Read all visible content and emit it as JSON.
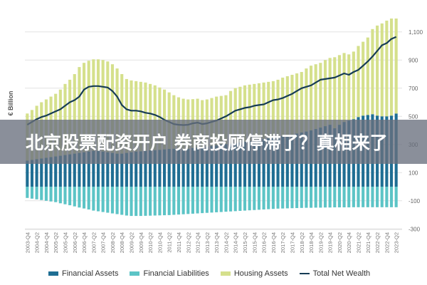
{
  "banner": {
    "title": "北京股票配资开户 券商投顾停滞了？真相来了"
  },
  "chart_data": {
    "type": "bar",
    "stacked": true,
    "ylabel": "€ Billion",
    "ylim": [
      -300,
      1200
    ],
    "y_ticks": [
      1100,
      900,
      700,
      500,
      300,
      100,
      -100,
      -300
    ],
    "y_tick_labels": [
      "1,100",
      "900",
      "700",
      "500",
      "300",
      "100",
      "-100",
      "-300"
    ],
    "y_axis_position": "right",
    "grid": true,
    "legend_position": "bottom",
    "x_frequency": "quarterly, 2003-Q4 to 2023-Q2",
    "x_tick_labels": [
      "2003-Q4",
      "2004-Q2",
      "2004-Q4",
      "2005-Q2",
      "2005-Q4",
      "2006-Q2",
      "2006-Q4",
      "2007-Q2",
      "2007-Q4",
      "2008-Q2",
      "2008-Q4",
      "2009-Q2",
      "2009-Q4",
      "2010-Q2",
      "2010-Q4",
      "2011-Q2",
      "2011-Q4",
      "2012-Q2",
      "2012-Q4",
      "2013-Q2",
      "2013-Q4",
      "2014-Q2",
      "2014-Q4",
      "2015-Q2",
      "2015-Q4",
      "2016-Q2",
      "2016-Q4",
      "2017-Q2",
      "2017-Q4",
      "2018-Q2",
      "2018-Q4",
      "2019-Q2",
      "2019-Q4",
      "2020-Q2",
      "2020-Q4",
      "2021-Q2",
      "2021-Q4",
      "2022-Q2",
      "2022-Q4",
      "2023-Q2"
    ],
    "series": [
      {
        "name": "Financial Assets",
        "type": "bar",
        "color": "#1f6e93",
        "values": [
          185,
          190,
          195,
          200,
          205,
          210,
          215,
          220,
          225,
          230,
          235,
          240,
          245,
          250,
          255,
          255,
          250,
          245,
          240,
          235,
          235,
          240,
          245,
          250,
          252,
          255,
          258,
          260,
          262,
          265,
          268,
          270,
          270,
          268,
          270,
          275,
          278,
          282,
          285,
          290,
          295,
          300,
          303,
          306,
          310,
          315,
          320,
          325,
          330,
          335,
          340,
          345,
          350,
          355,
          360,
          365,
          370,
          378,
          385,
          392,
          400,
          410,
          420,
          430,
          440,
          415,
          440,
          460,
          470,
          480,
          495,
          505,
          510,
          515,
          505,
          500,
          500,
          505,
          520
        ]
      },
      {
        "name": "Financial Liabilities",
        "type": "bar",
        "color": "#5cc4c6",
        "values": [
          -80,
          -85,
          -90,
          -95,
          -100,
          -105,
          -110,
          -118,
          -125,
          -132,
          -140,
          -148,
          -155,
          -162,
          -170,
          -175,
          -180,
          -185,
          -190,
          -195,
          -200,
          -205,
          -208,
          -208,
          -208,
          -207,
          -206,
          -205,
          -204,
          -203,
          -202,
          -200,
          -198,
          -196,
          -194,
          -192,
          -190,
          -188,
          -186,
          -184,
          -182,
          -180,
          -178,
          -176,
          -174,
          -172,
          -170,
          -168,
          -166,
          -164,
          -162,
          -160,
          -158,
          -156,
          -155,
          -154,
          -153,
          -152,
          -151,
          -150,
          -150,
          -149,
          -149,
          -148,
          -148,
          -147,
          -147,
          -147,
          -147,
          -146,
          -146,
          -146,
          -146,
          -146,
          -146,
          -146,
          -146,
          -146,
          -146
        ]
      },
      {
        "name": "Housing Assets",
        "type": "bar",
        "color": "#d5e08c",
        "values": [
          335,
          355,
          380,
          400,
          415,
          430,
          445,
          470,
          505,
          530,
          565,
          610,
          635,
          645,
          650,
          650,
          650,
          645,
          630,
          605,
          565,
          525,
          510,
          500,
          493,
          485,
          472,
          460,
          443,
          425,
          402,
          380,
          365,
          357,
          350,
          347,
          347,
          333,
          335,
          340,
          345,
          345,
          347,
          374,
          390,
          395,
          400,
          400,
          400,
          400,
          400,
          400,
          400,
          405,
          415,
          420,
          425,
          427,
          430,
          448,
          460,
          460,
          460,
          470,
          475,
          505,
          495,
          490,
          470,
          480,
          505,
          525,
          550,
          605,
          640,
          660,
          680,
          690,
          675
        ]
      },
      {
        "name": "Total Net Wealth",
        "type": "line",
        "color": "#163c55",
        "values": [
          440,
          460,
          480,
          495,
          505,
          520,
          535,
          550,
          575,
          600,
          615,
          640,
          690,
          710,
          715,
          715,
          710,
          705,
          680,
          640,
          580,
          550,
          540,
          540,
          535,
          525,
          520,
          510,
          495,
          475,
          460,
          445,
          440,
          438,
          440,
          450,
          455,
          445,
          450,
          460,
          470,
          485,
          500,
          520,
          540,
          550,
          560,
          565,
          575,
          580,
          585,
          600,
          615,
          620,
          630,
          645,
          660,
          680,
          700,
          710,
          720,
          740,
          760,
          765,
          770,
          775,
          790,
          805,
          795,
          815,
          830,
          860,
          890,
          925,
          965,
          1005,
          1020,
          1050,
          1065
        ]
      }
    ]
  }
}
